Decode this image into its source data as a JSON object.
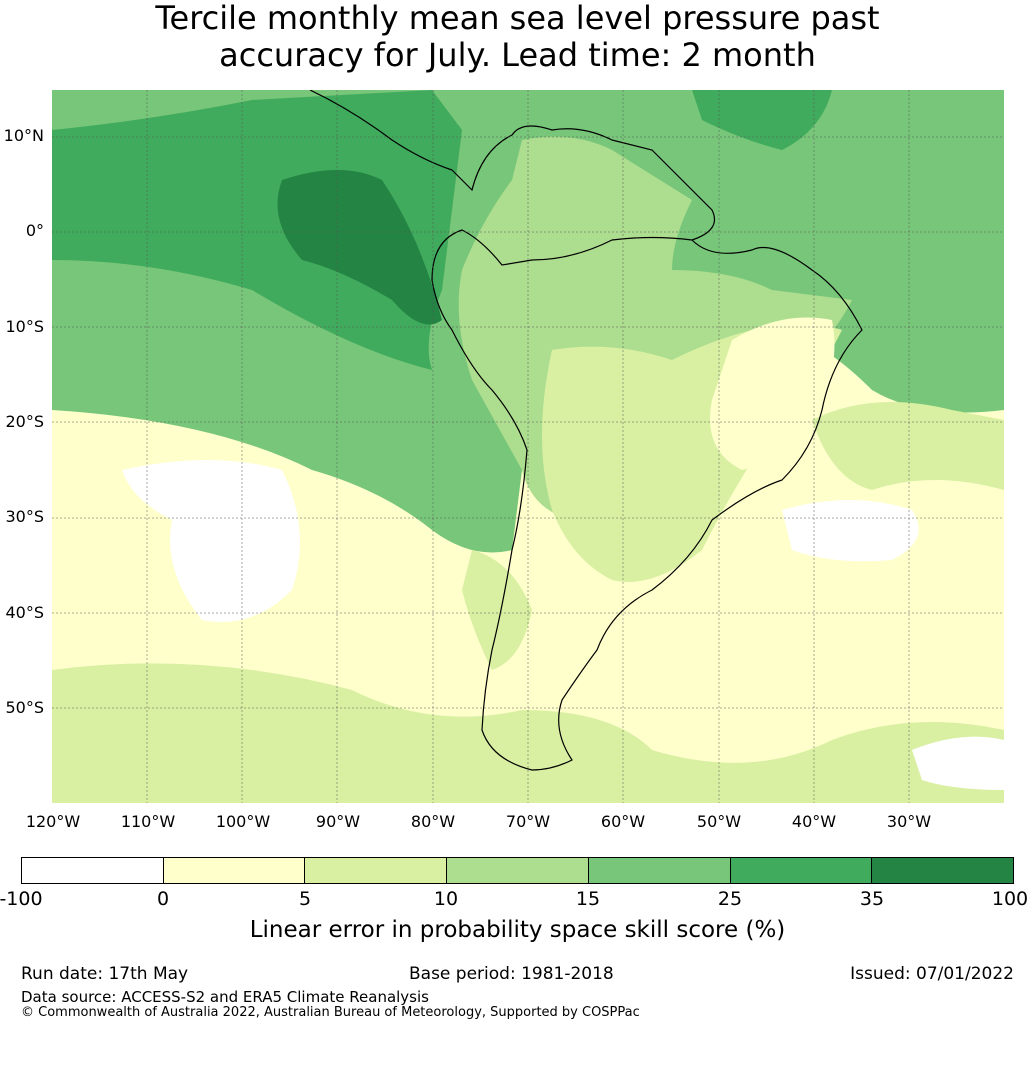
{
  "title_line1": "Tercile monthly mean sea level pressure past",
  "title_line2": "accuracy for July. Lead time: 2 month",
  "lat_labels": [
    "10°N",
    "0°",
    "10°S",
    "20°S",
    "30°S",
    "40°S",
    "50°S"
  ],
  "lon_labels": [
    "120°W",
    "110°W",
    "100°W",
    "90°W",
    "80°W",
    "70°W",
    "60°W",
    "50°W",
    "40°W",
    "30°W"
  ],
  "colorbar": {
    "colors": [
      "#ffffff",
      "#ffffcc",
      "#d9f0a3",
      "#addd8e",
      "#78c679",
      "#41ab5d",
      "#238443"
    ],
    "ticks": [
      "-100",
      "0",
      "5",
      "10",
      "15",
      "25",
      "35",
      "100"
    ],
    "label": "Linear error in probability space skill score (%)"
  },
  "footer": {
    "run_date": "Run date: 17th May",
    "base_period": "Base period: 1981-2018",
    "issued": "Issued: 07/01/2022",
    "data_source": "Data source: ACCESS-S2 and ERA5 Climate Reanalysis",
    "copyright": "© Commonwealth of Australia 2022, Australian Bureau of Meteorology, Supported by COSPPac"
  }
}
